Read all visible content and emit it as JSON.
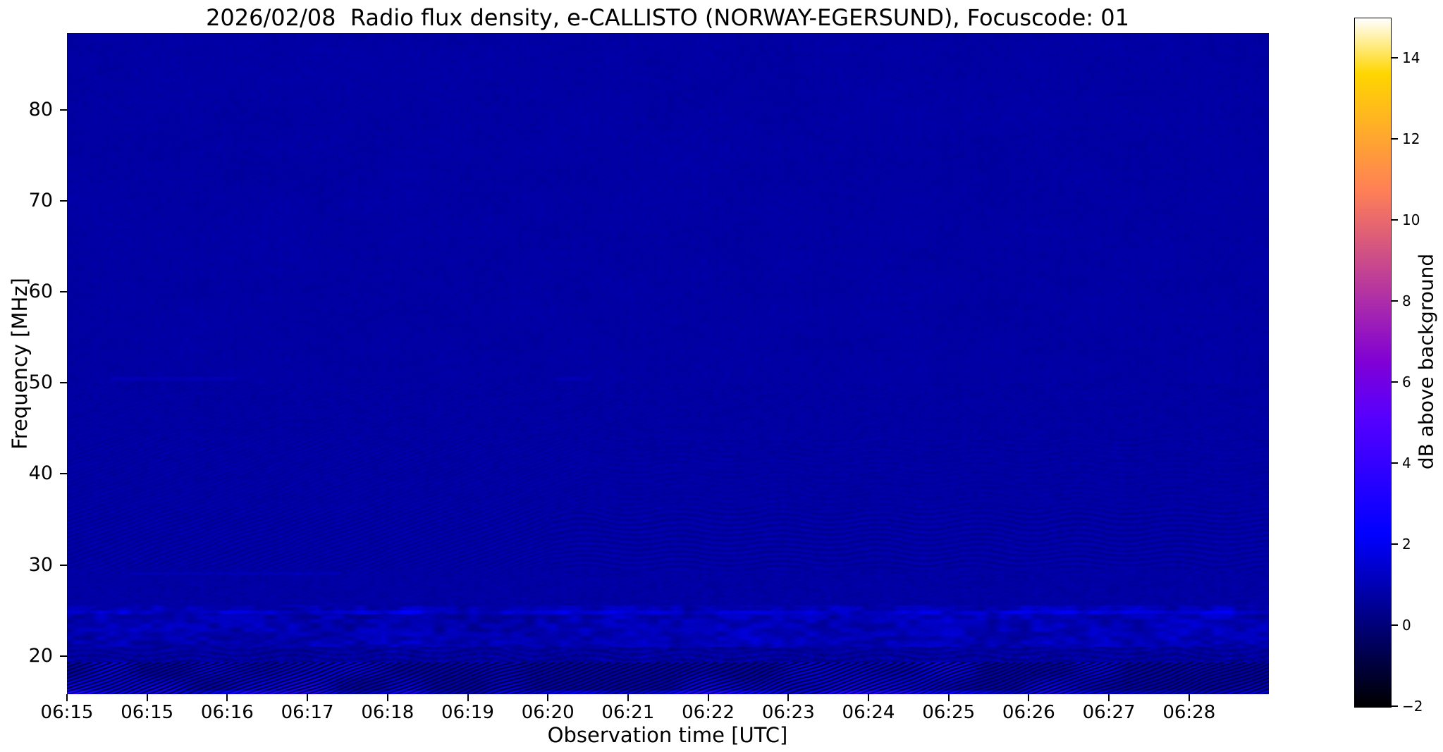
{
  "chart_data": {
    "type": "heatmap",
    "subtype": "radio-spectrogram",
    "title": "2026/02/08  Radio flux density, e-CALLISTO (NORWAY-EGERSUND), Focuscode: 01",
    "xlabel": "Observation time [UTC]",
    "ylabel": "Frequency [MHz]",
    "x_tick_labels": [
      "06:15",
      "06:15",
      "06:16",
      "06:17",
      "06:18",
      "06:19",
      "06:20",
      "06:21",
      "06:22",
      "06:23",
      "06:24",
      "06:25",
      "06:26",
      "06:27",
      "06:28"
    ],
    "observation_start": "06:15",
    "x_span_minutes": 15,
    "y_tick_values_mhz": [
      80,
      70,
      60,
      50,
      40,
      30,
      20
    ],
    "ylim_mhz": [
      15.8,
      88.4
    ],
    "grid": false,
    "legend": "none",
    "colorbar": {
      "label": "dB above background",
      "tick_values": [
        14,
        12,
        10,
        8,
        6,
        4,
        2,
        0,
        -2
      ],
      "tick_labels": [
        "14",
        "12",
        "10",
        "8",
        "6",
        "4",
        "2",
        "0",
        "−2"
      ],
      "vmin": -2,
      "vmax": 15,
      "colormap": "gnuplot2",
      "position": "right"
    },
    "background_db": 0.72,
    "bands": [
      {
        "f_range": [
          50,
          88.5
        ],
        "kind": "quiet",
        "base_db": 0.72,
        "amp": 0.03,
        "description": "uniform quiet dark-blue background"
      },
      {
        "f_range": [
          44,
          50
        ],
        "kind": "stripes_faint",
        "base_db": 0.7,
        "amp": 0.09,
        "description": "faint diagonal interference striping"
      },
      {
        "f_range": [
          36,
          44
        ],
        "kind": "stripes_mixed",
        "base_db": 0.7,
        "amp": 0.16,
        "description": "diagonal stripes on left half, wavy dark bands on right half"
      },
      {
        "f_range": [
          29.5,
          36
        ],
        "kind": "stripes_strong",
        "base_db": 0.68,
        "amp": 0.27,
        "description": "strong herringbone stripes left, wavy dark lanes right"
      },
      {
        "f_range": [
          25.6,
          29.5
        ],
        "kind": "mild",
        "base_db": 0.72,
        "amp": 0.07,
        "description": "mildly mottled background"
      },
      {
        "f_range": [
          21,
          25.6
        ],
        "kind": "speckle",
        "base_db": 0.9,
        "amp": 0.08,
        "description": "bright speckled interference band, brighter after 06:22"
      },
      {
        "f_range": [
          19.3,
          21
        ],
        "kind": "transition",
        "base_db": 0.6,
        "amp": 0.25,
        "description": "wavy transition lane"
      },
      {
        "f_range": [
          15.8,
          19.3
        ],
        "kind": "storm",
        "base_db": 0.35,
        "amp": 0.9,
        "description": "strong striped band: near-black troughs with bright blue diagonal streaks"
      }
    ],
    "features": [
      {
        "name": "bright-line-25MHz",
        "freq_mhz": 24.85,
        "half_width_mhz": 0.17,
        "t_ranges": [
          [
            0,
            15
          ]
        ],
        "boost_db": 0.45,
        "patchy": true
      },
      {
        "name": "faint-line-29MHz",
        "freq_mhz": 29.1,
        "half_width_mhz": 0.14,
        "t_ranges": [
          [
            0.8,
            3.4
          ]
        ],
        "boost_db": 0.28,
        "patchy": false
      },
      {
        "name": "faint-line-50.5MHz",
        "freq_mhz": 50.52,
        "half_width_mhz": 0.13,
        "t_ranges": [
          [
            0.55,
            2.1
          ],
          [
            6.1,
            6.55
          ]
        ],
        "boost_db": 0.32,
        "patchy": false
      },
      {
        "name": "bright-bottom-edge",
        "freq_mhz": 16.0,
        "half_width_mhz": 0.22,
        "t_ranges": [
          [
            0,
            15
          ]
        ],
        "boost_db": 0.95,
        "patchy": true
      }
    ]
  }
}
